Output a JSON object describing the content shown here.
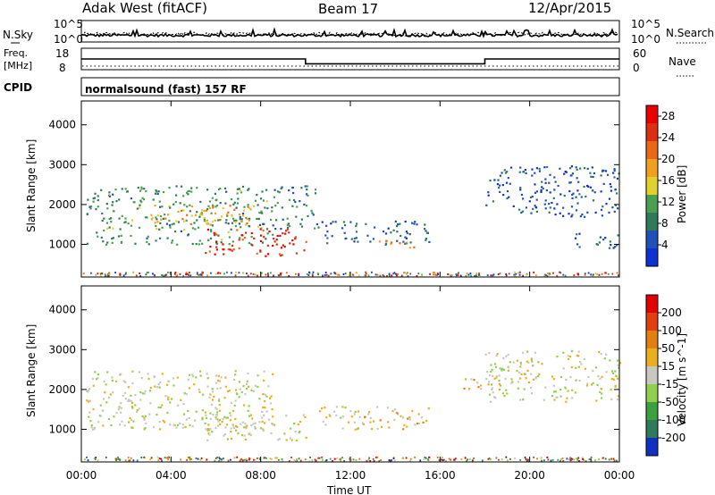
{
  "header": {
    "station": "Adak West (fitACF)",
    "beam": "Beam 17",
    "date": "12/Apr/2015"
  },
  "top_panel": {
    "left_label": "N.Sky",
    "right_label": "N.Search",
    "ticks": [
      "10^5",
      "10^0"
    ],
    "right_ticks": [
      "10^5",
      "10^0"
    ]
  },
  "freq_panel": {
    "left_label_1": "Freq.",
    "left_label_2": "[MHz]",
    "left_ticks": [
      "18",
      "8"
    ],
    "right_ticks": [
      "60",
      "0"
    ],
    "right_label": "Nave"
  },
  "cpid_panel": {
    "left_label": "CPID",
    "text": "normalsound (fast) 157 RF"
  },
  "colors": {
    "power": [
      "#1030d0",
      "#2050b8",
      "#2e7a5a",
      "#4aa050",
      "#e0d030",
      "#f0a020",
      "#e86818",
      "#d83010",
      "#e80000"
    ],
    "velocity": [
      "#1030c0",
      "#2e7a5a",
      "#3aa040",
      "#90d050",
      "#c8c8c0",
      "#e8b020",
      "#e08010",
      "#e04010",
      "#e00000"
    ]
  },
  "chart_data": [
    {
      "type": "line",
      "panel": "N.Sky / N.Search",
      "x": [
        "00:00",
        "04:00",
        "08:00",
        "12:00",
        "16:00",
        "20:00",
        "00:00"
      ],
      "ylim": [
        "10^0",
        "10^5"
      ]
    },
    {
      "type": "line",
      "panel": "Freq. [MHz] / Nave",
      "x": [
        "00:00",
        "10:00",
        "10:00",
        "18:00",
        "18:00",
        "24:00"
      ],
      "series": [
        {
          "values": [
            13,
            13,
            10,
            10,
            13,
            13
          ]
        }
      ],
      "ylim": [
        8,
        18
      ],
      "y2lim": [
        0,
        60
      ]
    },
    {
      "type": "heatmap",
      "panel": "Power",
      "xlabel": "",
      "ylabel": "Slant Range [km]",
      "yticks": [
        "1000",
        "2000",
        "3000",
        "4000"
      ],
      "ylim": [
        180,
        4600
      ],
      "xlim": [
        "00:00",
        "24:00"
      ],
      "colorbar": {
        "label": "Power [dB]",
        "ticks": [
          "4",
          "8",
          "12",
          "16",
          "20",
          "24",
          "28"
        ],
        "range": [
          0,
          30
        ]
      },
      "regions": [
        {
          "t0": 0.2,
          "t1": 8.5,
          "r0": 1000,
          "r1": 2500,
          "value": 10
        },
        {
          "t0": 3.0,
          "t1": 8.0,
          "r0": 1500,
          "r1": 2000,
          "value": 18
        },
        {
          "t0": 5.5,
          "t1": 10.0,
          "r0": 700,
          "r1": 1400,
          "value": 26
        },
        {
          "t0": 8.5,
          "t1": 10.5,
          "r0": 1400,
          "r1": 2500,
          "value": 8
        },
        {
          "t0": 10.5,
          "t1": 15.5,
          "r0": 1000,
          "r1": 1600,
          "value": 6
        },
        {
          "t0": 13.0,
          "t1": 15.0,
          "r0": 900,
          "r1": 1100,
          "value": 20
        },
        {
          "t0": 18.0,
          "t1": 24.0,
          "r0": 1700,
          "r1": 3000,
          "value": 5
        },
        {
          "t0": 22.0,
          "t1": 24.0,
          "r0": 900,
          "r1": 1300,
          "value": 6
        }
      ]
    },
    {
      "type": "heatmap",
      "panel": "Velocity",
      "xlabel": "Time UT",
      "ylabel": "Slant Range [km]",
      "yticks": [
        "1000",
        "2000",
        "3000",
        "4000"
      ],
      "ylim": [
        180,
        4600
      ],
      "xticks": [
        "00:00",
        "04:00",
        "08:00",
        "12:00",
        "16:00",
        "20:00",
        "00:00"
      ],
      "xlim": [
        "00:00",
        "24:00"
      ],
      "colorbar": {
        "label": "Velocity [m s^-1]",
        "ticks": [
          "200",
          "100",
          "50",
          "15",
          "-15",
          "-50",
          "-100",
          "-200"
        ],
        "range": [
          -250,
          250
        ]
      },
      "regions": [
        {
          "t0": 0.2,
          "t1": 8.5,
          "r0": 1000,
          "r1": 2500,
          "value": 0
        },
        {
          "t0": 5.5,
          "t1": 10.0,
          "r0": 700,
          "r1": 1400,
          "value": 0
        },
        {
          "t0": 10.5,
          "t1": 12.5,
          "r0": 1000,
          "r1": 1600,
          "value": 0
        },
        {
          "t0": 12.5,
          "t1": 15.5,
          "r0": 1000,
          "r1": 1600,
          "value": 40
        },
        {
          "t0": 18.0,
          "t1": 24.0,
          "r0": 1700,
          "r1": 3000,
          "value": 0
        },
        {
          "t0": 17.0,
          "t1": 18.0,
          "r0": 1900,
          "r1": 2300,
          "value": 40
        }
      ]
    }
  ]
}
